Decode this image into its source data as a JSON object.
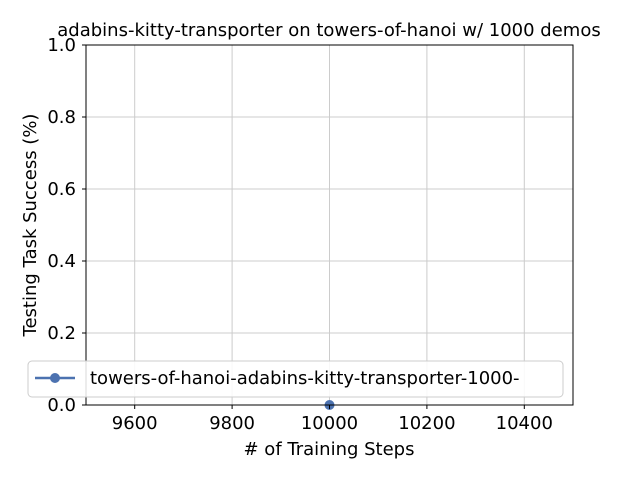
{
  "chart_data": {
    "type": "line",
    "title": "adabins-kitty-transporter on towers-of-hanoi w/ 1000 demos",
    "xlabel": "# of Training Steps",
    "ylabel": "Testing Task Success (%)",
    "xlim": [
      9500,
      10500
    ],
    "ylim": [
      0.0,
      1.0
    ],
    "xticks": [
      9600,
      9800,
      10000,
      10200,
      10400
    ],
    "yticks": [
      0.0,
      0.2,
      0.4,
      0.6,
      0.8,
      1.0
    ],
    "grid": true,
    "legend_position": "lower-left",
    "series": [
      {
        "name": "towers-of-hanoi-adabins-kitty-transporter-1000-",
        "color": "#4c72b0",
        "marker": "circle",
        "x": [
          10000
        ],
        "y": [
          0.0
        ]
      }
    ]
  }
}
